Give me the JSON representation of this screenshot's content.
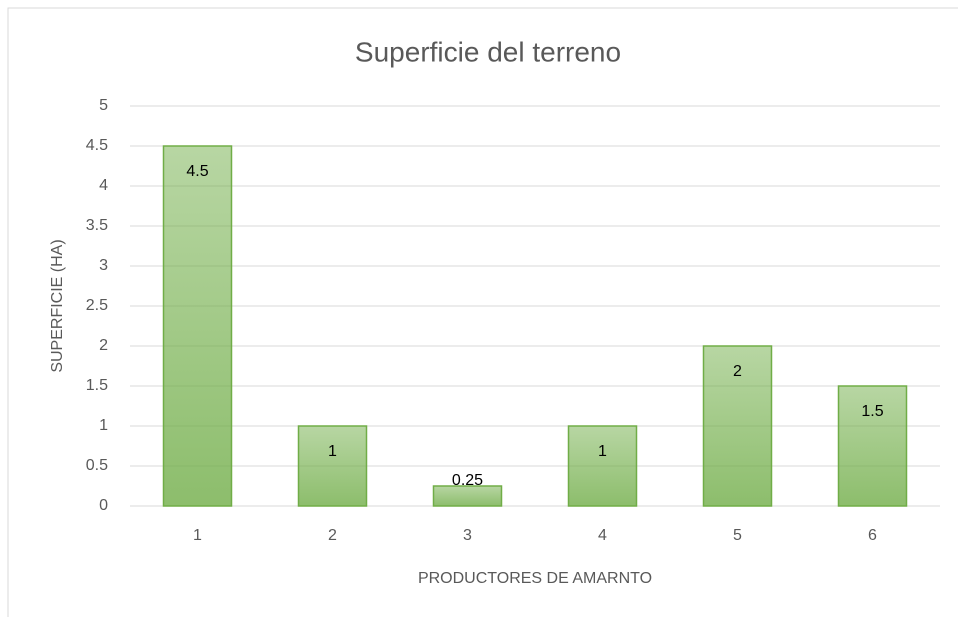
{
  "chart_data": {
    "type": "bar",
    "title": "Superficie del terreno",
    "x_label": "PRODUCTORES DE AMARNTO",
    "y_label": "SUPERFICIE (HA)",
    "categories": [
      "1",
      "2",
      "3",
      "4",
      "5",
      "6"
    ],
    "values": [
      4.5,
      1,
      0.25,
      1,
      2,
      1.5
    ],
    "color": "#70ad47",
    "ylim": [
      0,
      5
    ],
    "yticks": [
      0,
      0.5,
      1,
      1.5,
      2,
      2.5,
      3,
      3.5,
      4,
      4.5,
      5
    ],
    "grid": true
  }
}
